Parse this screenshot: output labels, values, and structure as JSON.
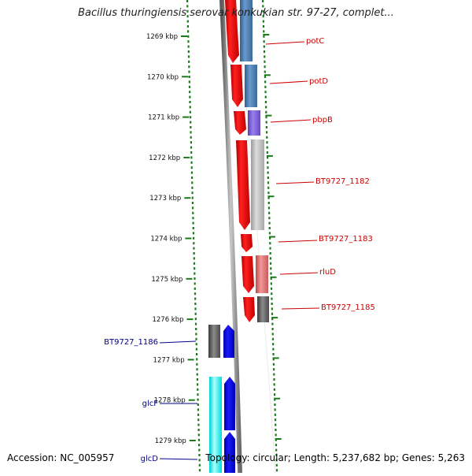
{
  "title": "Bacillus thuringiensis serovar konkukian str. 97-27, complet...",
  "footer": {
    "accession": "Accession: NC_005957",
    "topology": "Topology: circular; Length: 5,237,682 bp; Genes: 5,263"
  },
  "ticks": [
    {
      "label": "1269 kbp",
      "kbp": 1269
    },
    {
      "label": "1270 kbp",
      "kbp": 1270
    },
    {
      "label": "1271 kbp",
      "kbp": 1271
    },
    {
      "label": "1272 kbp",
      "kbp": 1272
    },
    {
      "label": "1273 kbp",
      "kbp": 1273
    },
    {
      "label": "1274 kbp",
      "kbp": 1274
    },
    {
      "label": "1275 kbp",
      "kbp": 1275
    },
    {
      "label": "1276 kbp",
      "kbp": 1276
    },
    {
      "label": "1277 kbp",
      "kbp": 1277
    },
    {
      "label": "1278 kbp",
      "kbp": 1278
    },
    {
      "label": "1279 kbp",
      "kbp": 1279
    }
  ],
  "genes_right": [
    {
      "label": "potC",
      "color": "#cc0000"
    },
    {
      "label": "potD",
      "color": "#cc0000"
    },
    {
      "label": "pbpB",
      "color": "#cc0000"
    },
    {
      "label": "BT9727_1182",
      "color": "#cc0000"
    },
    {
      "label": "BT9727_1183",
      "color": "#cc0000"
    },
    {
      "label": "rluD",
      "color": "#cc0000"
    },
    {
      "label": "BT9727_1185",
      "color": "#cc0000"
    }
  ],
  "genes_left": [
    {
      "label": "BT9727_1186",
      "color": "#00008b"
    },
    {
      "label": "glcF",
      "color": "#00008b"
    },
    {
      "label": "glcD",
      "color": "#00008b"
    }
  ],
  "colors": {
    "strand_forward": "#ff0000",
    "strand_reverse": "#0000ee",
    "backbone": "#8a8a8a",
    "tick_dots": "#1a7a1a",
    "cog_blue": "#4a7fb5",
    "cog_purple": "#7a5ccc",
    "cog_gray_light": "#c0c0c0",
    "cog_pink": "#e06a6a",
    "cog_dark": "#606060",
    "cog_cyan": "#22ffff"
  }
}
